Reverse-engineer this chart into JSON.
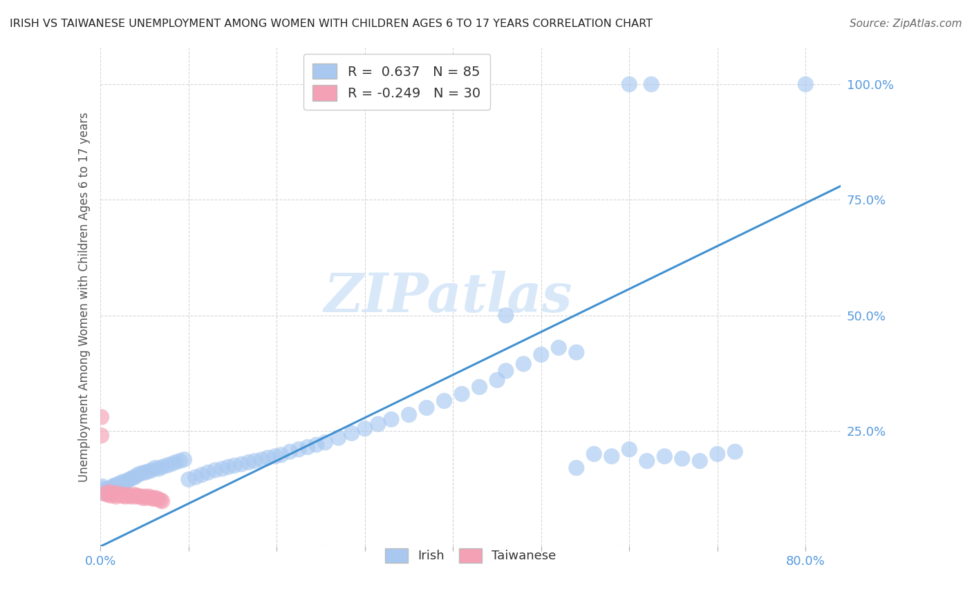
{
  "title": "IRISH VS TAIWANESE UNEMPLOYMENT AMONG WOMEN WITH CHILDREN AGES 6 TO 17 YEARS CORRELATION CHART",
  "source": "Source: ZipAtlas.com",
  "ylabel_label": "Unemployment Among Women with Children Ages 6 to 17 years",
  "irish_R": 0.637,
  "irish_N": 85,
  "taiwanese_R": -0.249,
  "taiwanese_N": 30,
  "irish_color": "#A8C8F0",
  "taiwanese_color": "#F4A0B5",
  "line_color": "#4090D0",
  "watermark_color": "#D8E8F8",
  "grid_color": "#CCCCCC",
  "tick_color": "#5599DD",
  "title_color": "#222222",
  "source_color": "#666666",
  "xlim": [
    0.0,
    0.84
  ],
  "ylim": [
    0.0,
    1.08
  ],
  "x_tick_positions": [
    0.0,
    0.1,
    0.2,
    0.3,
    0.4,
    0.5,
    0.6,
    0.7,
    0.8
  ],
  "x_tick_labels": [
    "0.0%",
    "",
    "",
    "",
    "",
    "",
    "",
    "",
    "80.0%"
  ],
  "y_tick_positions": [
    0.0,
    0.25,
    0.5,
    0.75,
    1.0
  ],
  "y_tick_labels": [
    "",
    "25.0%",
    "50.0%",
    "75.0%",
    "100.0%"
  ],
  "regression_x0": 0.0,
  "regression_y0": 0.0,
  "regression_x1": 0.84,
  "regression_y1": 0.78,
  "irish_scatter_x": [
    0.002,
    0.003,
    0.004,
    0.005,
    0.006,
    0.007,
    0.008,
    0.009,
    0.01,
    0.012,
    0.014,
    0.015,
    0.016,
    0.018,
    0.02,
    0.022,
    0.025,
    0.028,
    0.03,
    0.033,
    0.036,
    0.039,
    0.042,
    0.046,
    0.05,
    0.054,
    0.058,
    0.062,
    0.066,
    0.07,
    0.075,
    0.08,
    0.085,
    0.09,
    0.095,
    0.1,
    0.108,
    0.115,
    0.122,
    0.13,
    0.138,
    0.145,
    0.152,
    0.16,
    0.168,
    0.175,
    0.183,
    0.19,
    0.198,
    0.205,
    0.215,
    0.225,
    0.235,
    0.245,
    0.255,
    0.27,
    0.285,
    0.3,
    0.315,
    0.33,
    0.35,
    0.37,
    0.39,
    0.41,
    0.43,
    0.45,
    0.46,
    0.48,
    0.5,
    0.52,
    0.54,
    0.56,
    0.58,
    0.6,
    0.62,
    0.64,
    0.66,
    0.68,
    0.7,
    0.72,
    0.6,
    0.625,
    0.8,
    0.46,
    0.54
  ],
  "irish_scatter_y": [
    0.13,
    0.115,
    0.125,
    0.12,
    0.118,
    0.122,
    0.115,
    0.12,
    0.125,
    0.125,
    0.13,
    0.128,
    0.132,
    0.128,
    0.135,
    0.135,
    0.14,
    0.138,
    0.142,
    0.145,
    0.148,
    0.15,
    0.155,
    0.158,
    0.16,
    0.162,
    0.165,
    0.17,
    0.168,
    0.172,
    0.175,
    0.178,
    0.182,
    0.185,
    0.188,
    0.145,
    0.15,
    0.155,
    0.16,
    0.165,
    0.168,
    0.172,
    0.175,
    0.178,
    0.182,
    0.185,
    0.188,
    0.192,
    0.195,
    0.198,
    0.205,
    0.21,
    0.215,
    0.22,
    0.225,
    0.235,
    0.245,
    0.255,
    0.265,
    0.275,
    0.285,
    0.3,
    0.315,
    0.33,
    0.345,
    0.36,
    0.38,
    0.395,
    0.415,
    0.43,
    0.17,
    0.2,
    0.195,
    0.21,
    0.185,
    0.195,
    0.19,
    0.185,
    0.2,
    0.205,
    1.0,
    1.0,
    1.0,
    0.5,
    0.42
  ],
  "taiwanese_scatter_x": [
    0.001,
    0.001,
    0.005,
    0.008,
    0.01,
    0.012,
    0.014,
    0.016,
    0.018,
    0.02,
    0.022,
    0.025,
    0.028,
    0.03,
    0.032,
    0.035,
    0.038,
    0.04,
    0.042,
    0.045,
    0.048,
    0.05,
    0.052,
    0.055,
    0.058,
    0.06,
    0.062,
    0.065,
    0.068,
    0.07
  ],
  "taiwanese_scatter_y": [
    0.28,
    0.24,
    0.115,
    0.112,
    0.118,
    0.11,
    0.115,
    0.112,
    0.108,
    0.115,
    0.112,
    0.11,
    0.108,
    0.112,
    0.11,
    0.108,
    0.112,
    0.108,
    0.11,
    0.108,
    0.105,
    0.108,
    0.105,
    0.108,
    0.105,
    0.103,
    0.105,
    0.103,
    0.1,
    0.098
  ]
}
